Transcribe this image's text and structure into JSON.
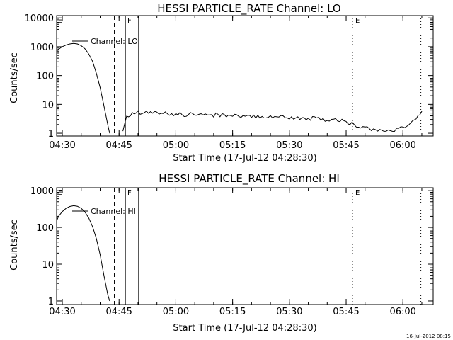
{
  "chart_data": [
    {
      "type": "line",
      "title": "HESSI PARTICLE_RATE Channel: LO",
      "xlabel": "Start Time (17-Jul-12 04:28:30)",
      "ylabel": "Counts/sec",
      "y_scale": "log",
      "xlim": [
        "04:28:30",
        "06:08:00"
      ],
      "ylim": [
        0.8,
        12000
      ],
      "x_ticks": [
        "04:30",
        "04:45",
        "05:00",
        "05:15",
        "05:30",
        "05:45",
        "06:00"
      ],
      "y_ticks": [
        "1",
        "10",
        "100",
        "1000",
        "10000"
      ],
      "legend": {
        "label": "Channel: LO",
        "placement": "top-left"
      },
      "annotations": [
        "E",
        "F",
        "E"
      ],
      "series": [
        {
          "name": "Channel: LO",
          "x": [
            "04:28:30",
            "04:29:00",
            "04:30:00",
            "04:31:00",
            "04:32:00",
            "04:33:00",
            "04:34:00",
            "04:35:00",
            "04:36:00",
            "04:37:00",
            "04:38:00",
            "04:39:00",
            "04:40:00",
            "04:41:00",
            "04:42:00",
            "04:42:30"
          ],
          "y": [
            700,
            820,
            1000,
            1150,
            1250,
            1300,
            1250,
            1080,
            850,
            560,
            310,
            120,
            38,
            9,
            2,
            1
          ]
        },
        {
          "name": "Channel: LO",
          "x": [
            "04:46:00",
            "04:46:30",
            "04:47:00",
            "04:48:00",
            "04:49:00",
            "04:50:00",
            "04:55:00",
            "05:00:00",
            "05:10:00",
            "05:20:00",
            "05:30:00",
            "05:40:00",
            "05:45:00",
            "05:46:00",
            "05:50:00",
            "05:55:00",
            "06:00:00",
            "06:02:00",
            "06:04:00",
            "06:05:00"
          ],
          "y": [
            1,
            2.5,
            3.5,
            4.2,
            4.8,
            5.2,
            5,
            4.5,
            4.3,
            4.0,
            3.6,
            3.0,
            2.8,
            2.2,
            1.5,
            1.2,
            1.5,
            2.5,
            4.2,
            5.8
          ]
        }
      ]
    },
    {
      "type": "line",
      "title": "HESSI PARTICLE_RATE Channel: HI",
      "xlabel": "Start Time (17-Jul-12 04:28:30)",
      "ylabel": "Counts/sec",
      "y_scale": "log",
      "xlim": [
        "04:28:30",
        "06:08:00"
      ],
      "ylim": [
        0.8,
        1200
      ],
      "x_ticks": [
        "04:30",
        "04:45",
        "05:00",
        "05:15",
        "05:30",
        "05:45",
        "06:00"
      ],
      "y_ticks": [
        "1",
        "10",
        "100",
        "1000"
      ],
      "legend": {
        "label": "Channel: HI",
        "placement": "top-left"
      },
      "annotations": [
        "E",
        "F",
        "E"
      ],
      "series": [
        {
          "name": "Channel: HI",
          "x": [
            "04:28:30",
            "04:29:00",
            "04:30:00",
            "04:31:00",
            "04:32:00",
            "04:33:00",
            "04:34:00",
            "04:35:00",
            "04:36:00",
            "04:37:00",
            "04:38:00",
            "04:39:00",
            "04:40:00",
            "04:41:00",
            "04:42:00",
            "04:42:30"
          ],
          "y": [
            150,
            200,
            270,
            330,
            370,
            390,
            375,
            330,
            260,
            180,
            105,
            50,
            18,
            5,
            1.5,
            1
          ]
        }
      ]
    }
  ],
  "timestamp": "16-Jul-2012 08:15"
}
